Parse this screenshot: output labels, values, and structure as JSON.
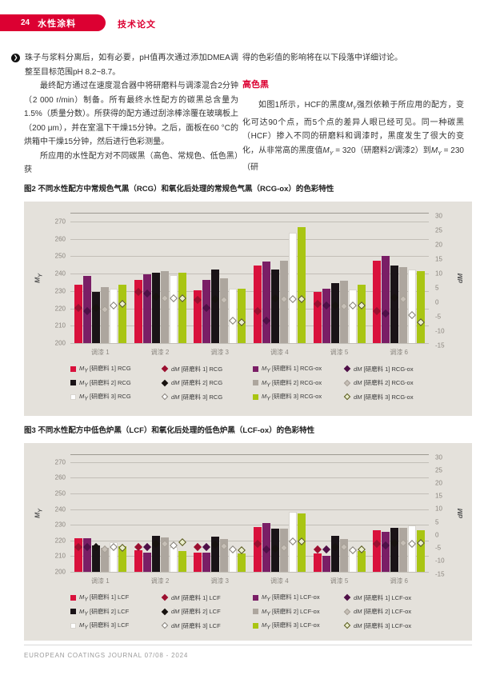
{
  "header": {
    "page_number": "24",
    "section": "水性涂料",
    "subsection": "技术论文"
  },
  "accent_color": "#dc0032",
  "article": {
    "left_column": {
      "bullet_icon": "❯",
      "p1": "珠子与浆料分离后，如有必要，pH值再次通过添加DMEA调整至目标范围pH 8.2~8.7。",
      "p2": "最终配方通过在速度混合器中将研磨料与调漆混合2分钟（2 000 r/min）制备。所有最终水性配方的碳黑总含量为1.5%（质量分数）。所获得的配方通过刮涂棒涂覆在玻璃板上（200 μm），并在室温下干燥15分钟。之后，面板在60 °C的烘箱中干燥15分钟，然后进行色彩测量。",
      "p3": "所应用的水性配方对不同碳黑（高色、常规色、低色黑）获"
    },
    "right_column": {
      "p1": "得的色彩值的影响将在以下段落中详细讨论。",
      "heading": "高色黑",
      "p2": "如图1所示，HCF的黑度M_Y强烈依赖于所应用的配方，变化可达90个点，而5个点的差异人眼已经可见。同一种碳黑（HCF）掺入不同的研磨料和调漆时，黑度发生了很大的变化，从非常高的黑度值M_Y = 320（研磨料2/调漆2）到M_Y = 230（研"
    }
  },
  "figure2_caption": "图2 不同水性配方中常规色气黑（RCG）和氧化后处理的常规色气黑（RCG-ox）的色彩特性",
  "figure3_caption": "图3 不同水性配方中低色炉黑（LCF）和氧化后处理的低色炉黑（LCF-ox）的色彩特性",
  "footer": {
    "text": "EUROPEAN COATINGS JOURNAL 07/08 - 2024"
  },
  "chart_data": [
    {
      "type": "bar",
      "title": "图2 不同水性配方中常规色气黑（RCG）和氧化后处理的常规色气黑（RCG-ox）的色彩特性",
      "categories": [
        "调漆 1",
        "调漆 2",
        "调漆 3",
        "调漆 4",
        "调漆 5",
        "调漆 6"
      ],
      "left_axis": {
        "label": "M_Y",
        "min": 200,
        "max": 275,
        "ticks": [
          270,
          260,
          250,
          240,
          230,
          220,
          210,
          200
        ]
      },
      "right_axis": {
        "label": "dM",
        "min": -15,
        "max": 30,
        "ticks": [
          30,
          25,
          20,
          15,
          10,
          5,
          0,
          -5,
          -10,
          -15
        ],
        "m_at_zero": 223.5,
        "m_per_dm": 1.657
      },
      "grid": true,
      "legend_position": "bottom",
      "bar_series": [
        {
          "label": "M_Y [研磨料 1] RCG",
          "color": "#d9113c",
          "border": "#d9113c",
          "values": [
            233.5,
            236.5,
            230.5,
            244.5,
            229.5,
            247.5
          ]
        },
        {
          "label": "M_Y [研磨料 1] RCG-ox",
          "color": "#7a1e66",
          "border": "#7a1e66",
          "values": [
            238.5,
            239.5,
            236.5,
            247.0,
            231.5,
            250.0
          ]
        },
        {
          "label": "M_Y [研磨料 2] RCG",
          "color": "#1a1317",
          "border": "#1a1317",
          "values": [
            229.5,
            240.5,
            242.5,
            242.5,
            234.5,
            244.5
          ]
        },
        {
          "label": "M_Y [研磨料 2] RCG-ox",
          "color": "#ada69e",
          "border": "#ada69e",
          "values": [
            232.0,
            241.5,
            237.5,
            247.5,
            236.0,
            243.5
          ]
        },
        {
          "label": "M_Y [研磨料 3] RCG",
          "color": "#ffffff",
          "border": "#d8d5cf",
          "values": [
            231.5,
            239.0,
            231.5,
            263.5,
            231.0,
            242.5
          ]
        },
        {
          "label": "M_Y [研磨料 3] RCG-ox",
          "color": "#a9c513",
          "border": "#a9c513",
          "values": [
            233.5,
            240.5,
            231.5,
            266.5,
            233.5,
            241.5
          ]
        }
      ],
      "marker_series": [
        {
          "label": "dM [研磨料 1] RCG",
          "fill": "#9c1030",
          "stroke": "#9c1030",
          "values": [
            -2.0,
            3.5,
            0.9,
            -3.0,
            -0.5,
            -3.0
          ]
        },
        {
          "label": "dM [研磨料 1] RCG-ox",
          "fill": "#4f1048",
          "stroke": "#4f1048",
          "values": [
            -3.0,
            3.0,
            -2.0,
            -6.5,
            -1.0,
            -4.0
          ]
        },
        {
          "label": "dM [研磨料 2] RCG",
          "fill": "#17120f",
          "stroke": "#17120f",
          "values": [
            -2.0,
            2.0,
            1.2,
            1.3,
            -1.0,
            1.7
          ]
        },
        {
          "label": "dM [研磨料 2] RCG-ox",
          "fill": "#c6bfb6",
          "stroke": "#a49d94",
          "values": [
            -2.5,
            1.5,
            0.9,
            1.0,
            -1.5,
            1.0
          ]
        },
        {
          "label": "dM [研磨料 3] RCG",
          "fill": "#ffffff",
          "stroke": "#837e76",
          "values": [
            -1.0,
            1.5,
            -6.5,
            1.0,
            -1.0,
            -4.5
          ]
        },
        {
          "label": "dM [研磨料 3] RCG-ox",
          "fill": "#e9edcb",
          "stroke": "#55551a",
          "values": [
            -0.7,
            1.5,
            -7.0,
            1.0,
            -1.0,
            -7.0
          ]
        }
      ]
    },
    {
      "type": "bar",
      "title": "图3 不同水性配方中低色炉黑（LCF）和氧化后处理的低色炉黑（LCF-ox）的色彩特性",
      "categories": [
        "调漆 1",
        "调漆 2",
        "调漆 3",
        "调漆 4",
        "调漆 5",
        "调漆 6"
      ],
      "left_axis": {
        "label": "M_Y",
        "min": 200,
        "max": 275,
        "ticks": [
          270,
          260,
          250,
          240,
          230,
          220,
          210,
          200
        ]
      },
      "right_axis": {
        "label": "dM",
        "min": -15,
        "max": 30,
        "ticks": [
          30,
          25,
          20,
          15,
          10,
          5,
          0,
          -5,
          -10,
          -15
        ],
        "m_at_zero": 223.5,
        "m_per_dm": 1.657
      },
      "grid": true,
      "legend_position": "bottom",
      "bar_series": [
        {
          "label": "M_Y [研磨料 1] LCF",
          "color": "#d9113c",
          "border": "#d9113c",
          "values": [
            221.5,
            214.0,
            212.0,
            228.5,
            211.5,
            226.5
          ]
        },
        {
          "label": "M_Y [研磨料 1] LCF-ox",
          "color": "#7a1e66",
          "border": "#7a1e66",
          "values": [
            221.5,
            212.0,
            212.5,
            231.0,
            210.0,
            225.5
          ]
        },
        {
          "label": "M_Y [研磨料 2] LCF",
          "color": "#1a1317",
          "border": "#1a1317",
          "values": [
            217.0,
            223.0,
            222.5,
            227.5,
            223.0,
            228.0
          ]
        },
        {
          "label": "M_Y [研磨料 2] LCF-ox",
          "color": "#ada69e",
          "border": "#ada69e",
          "values": [
            215.5,
            222.0,
            221.0,
            227.5,
            221.0,
            228.0
          ]
        },
        {
          "label": "M_Y [研磨料 3] LCF",
          "color": "#ffffff",
          "border": "#d8d5cf",
          "values": [
            219.0,
            216.0,
            214.5,
            238.5,
            215.0,
            229.5
          ]
        },
        {
          "label": "M_Y [研磨料 3] LCF-ox",
          "color": "#a9c513",
          "border": "#a9c513",
          "values": [
            216.5,
            213.5,
            211.5,
            237.0,
            213.5,
            226.5
          ]
        }
      ],
      "marker_series": [
        {
          "label": "dM [研磨料 1] LCF",
          "fill": "#9c1030",
          "stroke": "#9c1030",
          "values": [
            -4.5,
            -4.5,
            -4.5,
            -3.5,
            -5.5,
            -3.5
          ]
        },
        {
          "label": "dM [研磨料 1] LCF-ox",
          "fill": "#4f1048",
          "stroke": "#4f1048",
          "values": [
            -4.5,
            -4.5,
            -4.5,
            -5.5,
            -5.5,
            -4.0
          ]
        },
        {
          "label": "dM [研磨料 2] LCF",
          "fill": "#17120f",
          "stroke": "#17120f",
          "values": [
            -4.5,
            -3.5,
            -3.8,
            -5.3,
            -4.5,
            -3.0
          ]
        },
        {
          "label": "dM [研磨料 2] LCF-ox",
          "fill": "#c6bfb6",
          "stroke": "#a49d94",
          "values": [
            -5.5,
            -3.5,
            -4.3,
            -5.0,
            -4.5,
            -3.0
          ]
        },
        {
          "label": "dM [研磨料 3] LCF",
          "fill": "#ffffff",
          "stroke": "#837e76",
          "values": [
            -4.5,
            -4.0,
            -5.7,
            -2.5,
            -6.0,
            -3.5
          ]
        },
        {
          "label": "dM [研磨料 3] LCF-ox",
          "fill": "#e9edcb",
          "stroke": "#55551a",
          "values": [
            -5.0,
            -2.8,
            -5.9,
            -2.5,
            -5.5,
            -3.0
          ]
        }
      ]
    }
  ]
}
